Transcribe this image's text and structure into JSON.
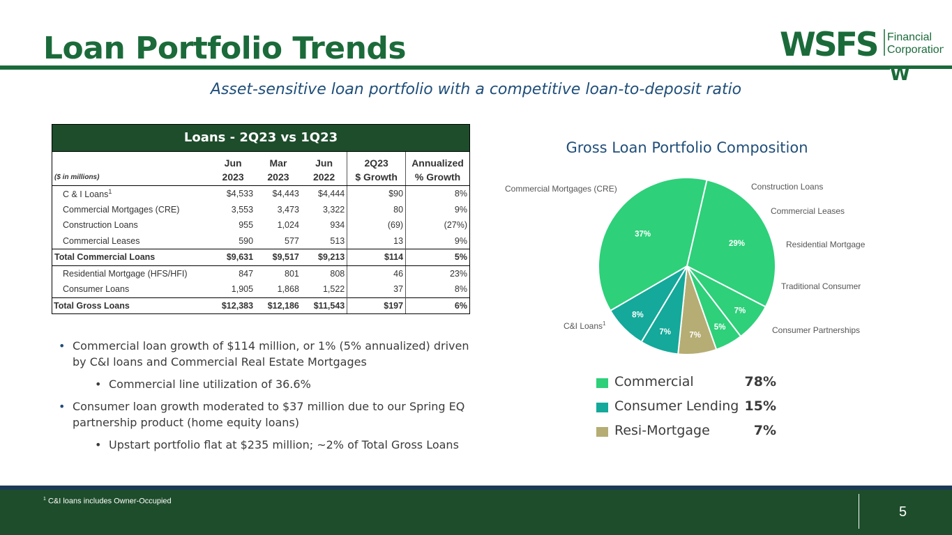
{
  "title": "Loan Portfolio Trends",
  "subtitle": "Asset-sensitive loan portfolio with a competitive loan-to-deposit ratio",
  "logo": {
    "text": "WSFS",
    "line1": "Financial",
    "line2": "Corporation",
    "mark": "W"
  },
  "table": {
    "title": "Loans - 2Q23 vs 1Q23",
    "units": "($ in millions)",
    "headers_top": [
      "Jun",
      "Mar",
      "Jun",
      "2Q23",
      "Annualized"
    ],
    "headers_bottom": [
      "2023",
      "2023",
      "2022",
      "$ Growth",
      "% Growth"
    ],
    "rows": [
      {
        "label": "C & I Loans",
        "sup": "1",
        "vals": [
          "$4,533",
          "$4,443",
          "$4,444",
          "$90",
          "8%"
        ]
      },
      {
        "label": "Commercial Mortgages (CRE)",
        "sup": "",
        "vals": [
          "3,553",
          "3,473",
          "3,322",
          "80",
          "9%"
        ]
      },
      {
        "label": "Construction Loans",
        "sup": "",
        "vals": [
          "955",
          "1,024",
          "934",
          "(69)",
          "(27%)"
        ]
      },
      {
        "label": "Commercial Leases",
        "sup": "",
        "vals": [
          "590",
          "577",
          "513",
          "13",
          "9%"
        ]
      },
      {
        "label": "Total Commercial Loans",
        "sup": "",
        "vals": [
          "$9,631",
          "$9,517",
          "$9,213",
          "$114",
          "5%"
        ]
      },
      {
        "label": "Residential Mortgage (HFS/HFI)",
        "sup": "",
        "vals": [
          "847",
          "801",
          "808",
          "46",
          "23%"
        ]
      },
      {
        "label": "Consumer Loans",
        "sup": "",
        "vals": [
          "1,905",
          "1,868",
          "1,522",
          "37",
          "8%"
        ]
      },
      {
        "label": "Total Gross Loans",
        "sup": "",
        "vals": [
          "$12,383",
          "$12,186",
          "$11,543",
          "$197",
          "6%"
        ]
      }
    ]
  },
  "bullets": [
    {
      "text": "Commercial loan growth of $114 million, or 1% (5% annualized) driven by C&I loans and Commercial Real Estate Mortgages",
      "level": 1
    },
    {
      "text": "Commercial line utilization of 36.6%",
      "level": 2
    },
    {
      "text": "Consumer loan growth moderated to $37 million due to our Spring EQ partnership product (home equity loans)",
      "level": 1
    },
    {
      "text": "Upstart portfolio flat at $235 million; ~2% of Total Gross Loans",
      "level": 2
    }
  ],
  "chart_data": {
    "type": "pie",
    "title": "Gross Loan Portfolio Composition",
    "slices": [
      {
        "label": "C&I Loans",
        "sup": "1",
        "value": 37,
        "display": "37%",
        "color": "#2ed07a"
      },
      {
        "label": "Commercial Mortgages (CRE)",
        "sup": "",
        "value": 29,
        "display": "29%",
        "color": "#2ed07a"
      },
      {
        "label": "Construction Loans",
        "sup": "",
        "value": 7,
        "display": "7%",
        "color": "#2ed07a"
      },
      {
        "label": "Commercial Leases",
        "sup": "",
        "value": 5,
        "display": "5%",
        "color": "#2ed07a"
      },
      {
        "label": "Residential Mortgage",
        "sup": "",
        "value": 7,
        "display": "7%",
        "color": "#b5ad74"
      },
      {
        "label": "Traditional Consumer",
        "sup": "",
        "value": 7,
        "display": "7%",
        "color": "#14a99a"
      },
      {
        "label": "Consumer Partnerships",
        "sup": "",
        "value": 8,
        "display": "8%",
        "color": "#14a99a"
      }
    ],
    "legend": [
      {
        "name": "Commercial",
        "pct": "78%",
        "color": "#2ed07a"
      },
      {
        "name": "Consumer Lending",
        "pct": "15%",
        "color": "#14a99a"
      },
      {
        "name": "Resi-Mortgage",
        "pct": "7%",
        "color": "#b5ad74"
      }
    ]
  },
  "footer": {
    "note_sup": "1",
    "note": "C&I loans includes Owner-Occupied",
    "page": "5"
  },
  "colors": {
    "brand_green": "#1b6b3a",
    "dark_green": "#1e4d2b",
    "navy": "#1f4e79"
  }
}
